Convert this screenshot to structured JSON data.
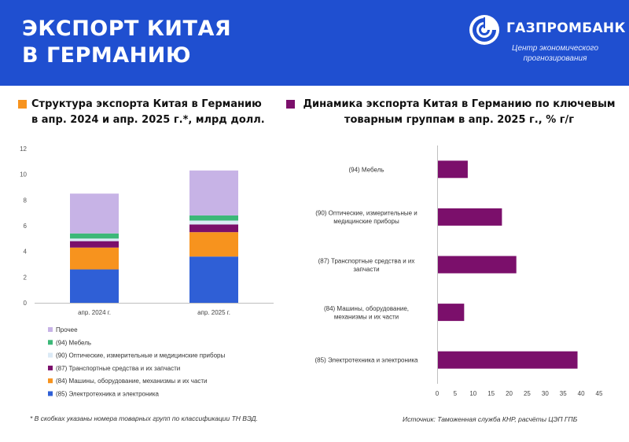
{
  "header": {
    "title_lines": [
      "ЭКСПОРТ КИТАЯ",
      "В ГЕРМАНИЮ"
    ],
    "brand_name": "ГАЗПРОМБАНК",
    "brand_sub_lines": [
      "Центр экономического",
      "прогнозирования"
    ],
    "background_color": "#1f4fd0",
    "logo_icon": "gazprombank-logo-icon"
  },
  "left_panel": {
    "title_lines": [
      "Структура экспорта Китая в Германию",
      "в апр. 2024 и апр. 2025 г.*, млрд долл."
    ],
    "marker_color": "#f7931e"
  },
  "right_panel": {
    "title_lines": [
      "Динамика экспорта Китая в Германию по ключевым",
      "товарным группам в апр. 2025 г., % г/г"
    ],
    "marker_color": "#7b0f6b"
  },
  "footnote": "* В скобках указаны номера товарных групп по классификации ТН ВЭД.",
  "source": "Источник: Таможенная служба КНР, расчёты ЦЭП ГПБ",
  "chart_data": [
    {
      "type": "bar",
      "stacked": true,
      "categories": [
        "апр. 2024 г.",
        "апр. 2025 г."
      ],
      "series": [
        {
          "name": "(85) Электротехника и электроника",
          "color": "#2f5fd6",
          "values": [
            2.6,
            3.6
          ]
        },
        {
          "name": "(84) Машины, оборудование, механизмы и их части",
          "color": "#f7931e",
          "values": [
            1.7,
            1.9
          ]
        },
        {
          "name": "(87) Транспортные средства и их запчасти",
          "color": "#7b0f6b",
          "values": [
            0.5,
            0.6
          ]
        },
        {
          "name": "(90) Оптические, измерительные и медицинские приборы",
          "color": "#dbeaf6",
          "values": [
            0.2,
            0.3
          ]
        },
        {
          "name": "(94) Мебель",
          "color": "#3cb878",
          "values": [
            0.4,
            0.4
          ]
        },
        {
          "name": "Прочее",
          "color": "#c7b3e6",
          "values": [
            3.1,
            3.5
          ]
        }
      ],
      "legend_order": [
        5,
        4,
        3,
        2,
        1,
        0
      ],
      "ylim": [
        0,
        12
      ],
      "yticks": [
        0,
        2,
        4,
        6,
        8,
        10,
        12
      ],
      "grid": false,
      "legend_position": "bottom"
    },
    {
      "type": "bar",
      "orientation": "horizontal",
      "categories": [
        "(94) Мебель",
        "(90) Оптические, измерительные и медицинские приборы",
        "(87) Транспортные средства и их запчасти",
        "(84) Машины, оборудование, механизмы и их части",
        "(85) Электротехника и электроника"
      ],
      "category_label_lines": [
        [
          "(94) Мебель"
        ],
        [
          "(90) Оптические, измерительные и",
          "медицинские приборы"
        ],
        [
          "(87) Транспортные средства и их",
          "запчасти"
        ],
        [
          "(84) Машины, оборудование,",
          "механизмы и их части"
        ],
        [
          "(85) Электротехника и электроника"
        ]
      ],
      "values": [
        8.5,
        18,
        22,
        7.5,
        39
      ],
      "color": "#7b0f6b",
      "xlim": [
        0,
        45
      ],
      "xticks": [
        0,
        5,
        10,
        15,
        20,
        25,
        30,
        35,
        40,
        45
      ],
      "grid": false
    }
  ]
}
